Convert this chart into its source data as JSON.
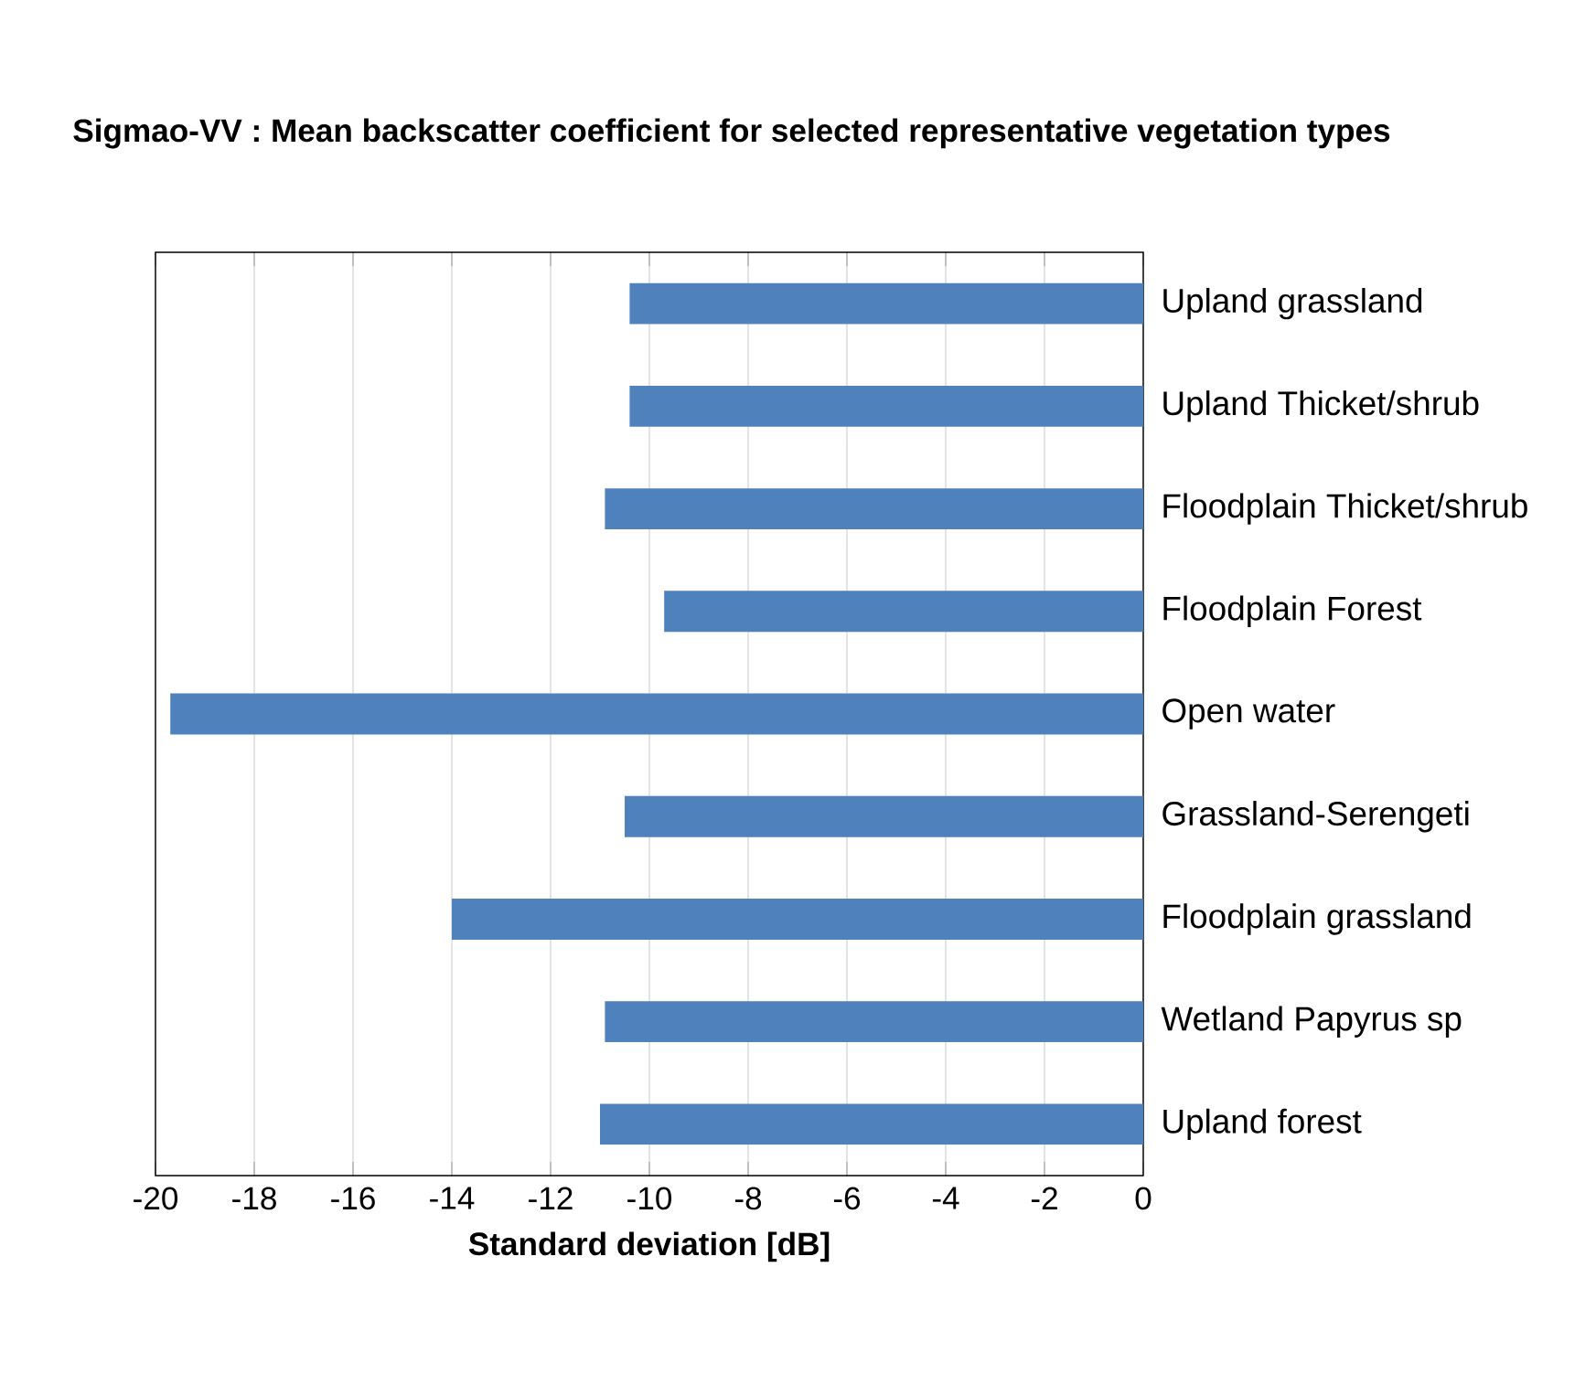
{
  "chart_data": {
    "type": "bar",
    "orientation": "horizontal",
    "title": "Sigmao-VV : Mean backscatter coefficient  for selected representative vegetation types",
    "xlabel": "Standard deviation [dB]",
    "categories": [
      "Upland grassland",
      "Upland Thicket/shrub",
      "Floodplain Thicket/shrub",
      "Floodplain Forest",
      "Open water",
      "Grassland-Serengeti",
      "Floodplain grassland",
      "Wetland Papyrus sp",
      "Upland forest"
    ],
    "values": [
      -10.4,
      -10.4,
      -10.9,
      -9.7,
      -19.7,
      -10.5,
      -14.0,
      -10.9,
      -11.0
    ],
    "color": "#4f81bd",
    "xlim": [
      -20,
      0
    ],
    "xticks": [
      -20,
      -18,
      -16,
      -14,
      -12,
      -10,
      -8,
      -6,
      -4,
      -2,
      0
    ],
    "grid": "x"
  }
}
